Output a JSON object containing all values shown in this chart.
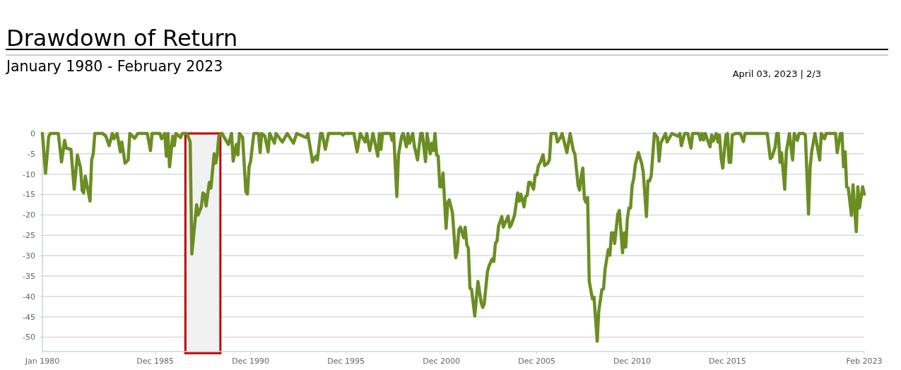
{
  "chart_data": {
    "type": "line",
    "title": "Drawdown of Return",
    "subtitle": "January 1980 - February 2023",
    "annotations": [
      "April 03, 2023 | 2/3"
    ],
    "x": [
      "1980-01",
      "1980-03",
      "1980-05",
      "1980-06",
      "1980-11",
      "1981-01",
      "1981-03",
      "1981-04",
      "1981-07",
      "1981-09",
      "1981-11",
      "1982-01",
      "1982-02",
      "1982-03",
      "1982-04",
      "1982-07",
      "1982-08",
      "1982-09",
      "1982-10",
      "1983-03",
      "1983-05",
      "1983-07",
      "1983-09",
      "1983-10",
      "1983-12",
      "1984-02",
      "1984-03",
      "1984-05",
      "1984-07",
      "1984-08",
      "1984-11",
      "1985-01",
      "1985-07",
      "1985-09",
      "1985-10",
      "1986-03",
      "1986-04",
      "1986-06",
      "1986-07",
      "1986-08",
      "1986-09",
      "1986-11",
      "1986-12",
      "1987-01",
      "1987-04",
      "1987-05",
      "1987-08",
      "1987-10",
      "1987-11",
      "1988-02",
      "1988-03",
      "1988-05",
      "1988-06",
      "1988-07",
      "1988-08",
      "1988-10",
      "1988-11",
      "1989-01",
      "1989-02",
      "1989-03",
      "1989-04",
      "1989-06",
      "1989-10",
      "1989-12",
      "1990-01",
      "1990-02",
      "1990-03",
      "1990-04",
      "1990-05",
      "1990-07",
      "1990-09",
      "1990-10",
      "1990-11",
      "1990-12",
      "1991-02",
      "1991-05",
      "1991-06",
      "1991-07",
      "1991-09",
      "1991-11",
      "1991-12",
      "1992-03",
      "1992-04",
      "1992-07",
      "1992-08",
      "1992-11",
      "1993-03",
      "1993-05",
      "1993-09",
      "1993-11",
      "1993-12",
      "1994-03",
      "1994-05",
      "1994-06",
      "1994-08",
      "1994-09",
      "1994-11",
      "1995-01",
      "1995-09",
      "1995-10",
      "1995-11",
      "1996-05",
      "1996-07",
      "1996-09",
      "1996-12",
      "1997-01",
      "1997-03",
      "1997-05",
      "1997-08",
      "1997-09",
      "1997-10",
      "1997-11",
      "1998-04",
      "1998-05",
      "1998-06",
      "1998-08",
      "1998-09",
      "1998-11",
      "1998-12",
      "1999-02",
      "1999-03",
      "1999-04",
      "1999-06",
      "1999-07",
      "1999-09",
      "1999-11",
      "1999-12",
      "2000-02",
      "2000-03",
      "2000-05",
      "2000-06",
      "2000-07",
      "2000-08",
      "2000-09",
      "2000-10",
      "2000-11",
      "2000-12",
      "2001-01",
      "2001-03",
      "2001-04",
      "2001-05",
      "2001-07",
      "2001-09",
      "2001-10",
      "2001-11",
      "2001-12",
      "2002-02",
      "2002-03",
      "2002-04",
      "2002-05",
      "2002-06",
      "2002-07",
      "2002-09",
      "2002-11",
      "2003-01",
      "2003-02",
      "2003-03",
      "2003-05",
      "2003-06",
      "2003-08",
      "2003-09",
      "2003-10",
      "2003-11",
      "2003-12",
      "2004-02",
      "2004-03",
      "2004-06",
      "2004-07",
      "2004-08",
      "2004-10",
      "2004-12",
      "2005-01",
      "2005-02",
      "2005-04",
      "2005-05",
      "2005-06",
      "2005-07",
      "2005-08",
      "2005-10",
      "2005-11",
      "2005-12",
      "2006-01",
      "2006-02",
      "2006-04",
      "2006-05",
      "2006-07",
      "2006-08",
      "2006-09",
      "2006-12",
      "2007-01",
      "2007-03",
      "2007-04",
      "2007-07",
      "2007-09",
      "2007-11",
      "2007-12",
      "2008-02",
      "2008-03",
      "2008-04",
      "2008-05",
      "2008-06",
      "2008-07",
      "2008-08",
      "2008-09",
      "2008-11",
      "2008-12",
      "2009-02",
      "2009-03",
      "2009-05",
      "2009-06",
      "2009-07",
      "2009-09",
      "2009-10",
      "2009-11",
      "2009-12",
      "2010-01",
      "2010-03",
      "2010-04",
      "2010-06",
      "2010-07",
      "2010-08",
      "2010-09",
      "2010-10",
      "2010-11",
      "2010-12",
      "2011-01",
      "2011-02",
      "2011-04",
      "2011-06",
      "2011-07",
      "2011-09",
      "2011-10",
      "2011-11",
      "2011-12",
      "2012-02",
      "2012-04",
      "2012-05",
      "2012-06",
      "2012-09",
      "2012-10",
      "2013-01",
      "2013-05",
      "2013-06",
      "2013-07",
      "2013-09",
      "2013-11",
      "2014-01",
      "2014-02",
      "2014-06",
      "2014-07",
      "2014-08",
      "2014-09",
      "2014-10",
      "2015-01",
      "2015-02",
      "2015-03",
      "2015-05",
      "2015-06",
      "2015-07",
      "2015-08",
      "2015-09",
      "2015-11",
      "2015-12",
      "2016-01",
      "2016-02",
      "2016-03",
      "2016-05",
      "2016-08",
      "2016-10",
      "2016-11",
      "2018-01",
      "2018-03",
      "2018-04",
      "2018-06",
      "2018-07",
      "2018-08",
      "2018-09",
      "2018-10",
      "2018-12",
      "2019-01",
      "2019-03",
      "2019-05",
      "2019-06",
      "2019-08",
      "2019-09",
      "2019-12",
      "2020-01",
      "2020-03",
      "2020-04",
      "2020-05",
      "2020-07",
      "2020-10",
      "2020-11",
      "2021-01",
      "2021-02",
      "2021-08",
      "2021-09",
      "2021-11",
      "2021-12",
      "2022-01",
      "2022-02",
      "2022-03",
      "2022-04",
      "2022-06",
      "2022-07",
      "2022-09",
      "2022-10",
      "2022-11",
      "2023-01",
      "2023-02"
    ],
    "series": [
      {
        "color": "#6b8e23",
        "values": [
          0,
          -9.8,
          -0.7,
          0,
          0,
          -7,
          -1.7,
          -3.6,
          -3.9,
          -13.7,
          -5.3,
          -8.5,
          -14,
          -14.6,
          -10.5,
          -16.6,
          -6.5,
          -5,
          0,
          0,
          -0.7,
          -3,
          0,
          -1.3,
          0,
          -4.5,
          -2.1,
          -7.3,
          -6.5,
          0,
          -1.2,
          0,
          0,
          -4.2,
          0,
          0,
          -1.3,
          0,
          -5.6,
          0,
          -8.2,
          -0.7,
          -3,
          0,
          -1,
          0,
          0,
          -2.1,
          -29.6,
          -17.5,
          -20,
          -18,
          -14.6,
          -14.9,
          -17.8,
          -12,
          -13.4,
          -5,
          -7.3,
          -5.3,
          -0.7,
          0,
          -2.7,
          0,
          -6.8,
          -4.7,
          -2.7,
          -5.3,
          0,
          -1,
          -14.3,
          -14.9,
          -8.2,
          -6.8,
          0,
          0,
          -4.7,
          0,
          -0.7,
          -4.5,
          0,
          -2.4,
          0,
          -1.6,
          -2.1,
          0,
          -2.4,
          0,
          -0.7,
          -1,
          0,
          -7,
          -5.6,
          -6.5,
          0,
          0,
          -3.9,
          0,
          0,
          -0.4,
          0,
          0,
          -4.5,
          0,
          -2.1,
          0,
          -4.2,
          0,
          -5.6,
          0,
          -3.9,
          0,
          0,
          -1.7,
          0,
          -15.5,
          -5.3,
          -0.7,
          0,
          -3.3,
          0,
          -2.4,
          0,
          -3,
          -6.5,
          0,
          0,
          -6.9,
          0,
          -5,
          -2.4,
          -4.2,
          0,
          -5.3,
          -5.6,
          -13.1,
          -13.1,
          -9.7,
          -23.3,
          -16.9,
          -16.3,
          -19.5,
          -30.5,
          -29,
          -23.6,
          -23,
          -25.6,
          -23,
          -27.3,
          -28.2,
          -38,
          -38.2,
          -44.8,
          -36.3,
          -41.5,
          -42.7,
          -41.8,
          -34,
          -32.5,
          -30.8,
          -31.4,
          -27,
          -26.4,
          -22.7,
          -20.4,
          -23,
          -20.3,
          -23,
          -22.4,
          -20.1,
          -14.6,
          -16.6,
          -14.9,
          -18,
          -15.5,
          -15.2,
          -12,
          -12,
          -13.7,
          -10.2,
          -10.2,
          -7.9,
          -7.3,
          -5.2,
          -7.9,
          -7.3,
          -6.5,
          0,
          0,
          -2.1,
          -1,
          0,
          -4.7,
          0,
          -4.2,
          -5,
          -12.8,
          -13.9,
          -10.5,
          -8.5,
          -16,
          -16.9,
          -15.7,
          -36.3,
          -40.6,
          -40.2,
          -51,
          -43.8,
          -38.3,
          -38.2,
          -33.4,
          -28.5,
          -29.9,
          -24.4,
          -24.4,
          -27,
          -19.8,
          -18.9,
          -29.3,
          -24.4,
          -27.9,
          -20.9,
          -18.3,
          -18.3,
          -12.8,
          -11.1,
          -7.6,
          -4.7,
          -7.3,
          -9.4,
          -20.4,
          -11.6,
          -11.6,
          -10.5,
          0,
          -1,
          -6.8,
          -2.4,
          0,
          -2.1,
          0,
          -0.7,
          0,
          -3,
          0,
          0,
          -3.6,
          0,
          0,
          -1.6,
          0,
          -1.6,
          0,
          -3.3,
          -0.4,
          -1.9,
          0,
          -2.1,
          -0.4,
          -5.9,
          -8.5,
          -0.4,
          0,
          -7.1,
          -7.1,
          -0.4,
          0,
          0,
          -2,
          0,
          0,
          -6.2,
          -5.8,
          -3.3,
          0,
          0,
          -7.1,
          -4.7,
          -13.7,
          -4.5,
          0,
          -6.5,
          0,
          -1.7,
          0,
          0,
          -0.4,
          -19.8,
          -8.2,
          -4.5,
          0,
          -6.5,
          0,
          -1.3,
          0,
          0,
          -4.7,
          0,
          0,
          -8.2,
          -4.5,
          -13.1,
          -13.4,
          -20.1,
          -12.6,
          -24.1,
          -13.1,
          -18.3,
          -13.1,
          -14.9
        ]
      }
    ],
    "xlim": [
      "1980-01",
      "2023-02"
    ],
    "xticks": [
      {
        "value": "1980-01",
        "label": "Jan 1980"
      },
      {
        "value": "1985-12",
        "label": "Dec 1985"
      },
      {
        "value": "1990-12",
        "label": "Dec 1990"
      },
      {
        "value": "1995-12",
        "label": "Dec 1995"
      },
      {
        "value": "2000-12",
        "label": "Dec 2000"
      },
      {
        "value": "2005-12",
        "label": "Dec 2005"
      },
      {
        "value": "2010-12",
        "label": "Dec 2010"
      },
      {
        "value": "2015-12",
        "label": "Dec 2015"
      },
      {
        "value": "2023-02",
        "label": "Feb 2023"
      }
    ],
    "ylim": [
      -53.5,
      0
    ],
    "yticks": [
      0,
      -5,
      -10,
      -15,
      -20,
      -25,
      -30,
      -35,
      -40,
      -45,
      -50
    ],
    "grid": "y",
    "line_style": "solid",
    "bands": [
      {
        "axis": "x",
        "from": "1987-07",
        "to": "1989-05",
        "color": "#c00000"
      }
    ]
  }
}
